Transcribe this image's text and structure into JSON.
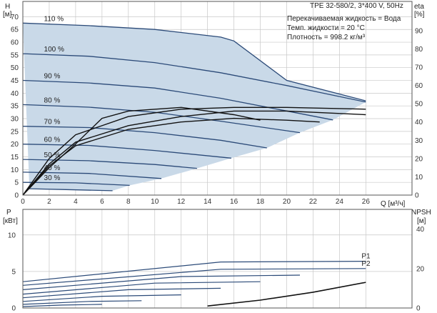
{
  "chart_data": [
    {
      "type": "line",
      "panel": "head-efficiency",
      "title": "TPE 32-580/2, 3*400 V, 50Hz",
      "info_lines": [
        "Перекачиваемая жидкость = Вода",
        "Темп. жидкости = 20 °C",
        "Плотность = 998.2 кг/м³"
      ],
      "ylabel_left": [
        "H",
        "[м]"
      ],
      "ylabel_right": [
        "eta",
        "[%]"
      ],
      "xlabel": "Q [м³/ч]",
      "x_ticks": [
        0,
        2,
        4,
        6,
        8,
        10,
        12,
        14,
        16,
        18,
        20,
        22,
        24,
        26
      ],
      "y_left_ticks": [
        0,
        5,
        10,
        15,
        20,
        25,
        30,
        35,
        40,
        45,
        50,
        55,
        60,
        65,
        70
      ],
      "y_right_ticks": [
        0,
        10,
        20,
        30,
        40,
        50,
        60,
        70,
        80,
        90
      ],
      "xlim": [
        0,
        29.5
      ],
      "ylim_left": [
        0,
        76
      ],
      "ylim_right": [
        0,
        106
      ],
      "grid": true,
      "area_fill": "#c9d9e8",
      "curve_color": "#2b4a78",
      "series": [
        {
          "name": "110 %",
          "x": [
            0,
            5,
            10,
            15,
            16,
            20,
            26
          ],
          "y": [
            67.5,
            66.5,
            65,
            62,
            60.5,
            45,
            37
          ]
        },
        {
          "name": "100 %",
          "x": [
            0,
            5,
            10,
            15,
            20,
            26
          ],
          "y": [
            55.5,
            54.5,
            52,
            48,
            43,
            36.5
          ]
        },
        {
          "name": "90 %",
          "x": [
            0,
            5,
            10,
            15,
            20,
            23.5
          ],
          "y": [
            45,
            44,
            42,
            38,
            33,
            29.5
          ]
        },
        {
          "name": "80 %",
          "x": [
            0,
            5,
            10,
            15,
            21
          ],
          "y": [
            35.5,
            34.5,
            32.5,
            29,
            24.5
          ]
        },
        {
          "name": "70 %",
          "x": [
            0,
            5,
            10,
            15,
            18.5
          ],
          "y": [
            27,
            26.5,
            24.5,
            21.5,
            18.5
          ]
        },
        {
          "name": "60 %",
          "x": [
            0,
            5,
            10,
            15.8
          ],
          "y": [
            20,
            19.5,
            17.5,
            14.5
          ]
        },
        {
          "name": "50 %",
          "x": [
            0,
            5,
            10,
            13.2
          ],
          "y": [
            14,
            13.5,
            12,
            10.5
          ]
        },
        {
          "name": "40 %",
          "x": [
            0,
            5,
            10.5
          ],
          "y": [
            9,
            8.5,
            6.5
          ]
        },
        {
          "name": "30 %",
          "x": [
            0,
            4,
            8.1
          ],
          "y": [
            5,
            4.8,
            3.8
          ]
        },
        {
          "name": "",
          "x": [
            0.5,
            3,
            6.8
          ],
          "y": [
            2.5,
            2.2,
            1.7
          ]
        }
      ],
      "efficiency_series": [
        {
          "x": [
            0,
            2,
            4,
            8,
            12,
            16,
            20,
            26
          ],
          "y": [
            0,
            20,
            33,
            43,
            47,
            48,
            48,
            47
          ]
        },
        {
          "x": [
            0,
            2,
            4,
            8,
            12,
            16,
            20,
            26
          ],
          "y": [
            0,
            17,
            29,
            38,
            43,
            46,
            46,
            44
          ]
        },
        {
          "x": [
            0,
            2,
            4,
            8,
            12,
            16,
            20,
            22.5
          ],
          "y": [
            0,
            16,
            27,
            36,
            40,
            42,
            41,
            40
          ]
        },
        {
          "x": [
            0,
            2,
            4,
            6,
            8,
            12,
            16,
            18
          ],
          "y": [
            0,
            15,
            28,
            42,
            46,
            48,
            44,
            41
          ]
        }
      ]
    },
    {
      "type": "line",
      "panel": "power-npsh",
      "ylabel_left": [
        "P",
        "[кВт]"
      ],
      "ylabel_right": [
        "NPSH",
        "[м]"
      ],
      "y_left_ticks": [
        0,
        5,
        10
      ],
      "y_right_ticks": [
        0,
        20,
        40
      ],
      "ylim_left": [
        0,
        13.5
      ],
      "ylim_right": [
        0,
        50
      ],
      "grid": true,
      "series": [
        {
          "name": "P1",
          "x": [
            0,
            16,
            26
          ],
          "y": [
            3.6,
            6.3,
            6.4
          ]
        },
        {
          "name": "P2",
          "x": [
            0,
            16,
            26
          ],
          "y": [
            3.1,
            5.3,
            5.4
          ]
        }
      ],
      "power_family": [
        {
          "x": [
            0,
            15,
            26
          ],
          "y": [
            3.6,
            6.3,
            6.4
          ]
        },
        {
          "x": [
            0,
            15,
            26
          ],
          "y": [
            3.1,
            5.3,
            5.4
          ]
        },
        {
          "x": [
            0,
            12,
            21
          ],
          "y": [
            2.5,
            4.3,
            4.5
          ]
        },
        {
          "x": [
            0,
            10,
            18
          ],
          "y": [
            1.9,
            3.4,
            3.6
          ]
        },
        {
          "x": [
            0,
            8,
            15
          ],
          "y": [
            1.4,
            2.5,
            2.7
          ]
        },
        {
          "x": [
            0,
            6,
            12
          ],
          "y": [
            0.9,
            1.6,
            1.8
          ]
        },
        {
          "x": [
            0,
            5,
            9
          ],
          "y": [
            0.5,
            0.9,
            1.0
          ]
        },
        {
          "x": [
            0,
            3,
            6
          ],
          "y": [
            0.2,
            0.4,
            0.5
          ]
        }
      ],
      "npsh": {
        "x": [
          14,
          18,
          22,
          26
        ],
        "y": [
          1,
          4,
          8,
          13
        ]
      }
    }
  ]
}
